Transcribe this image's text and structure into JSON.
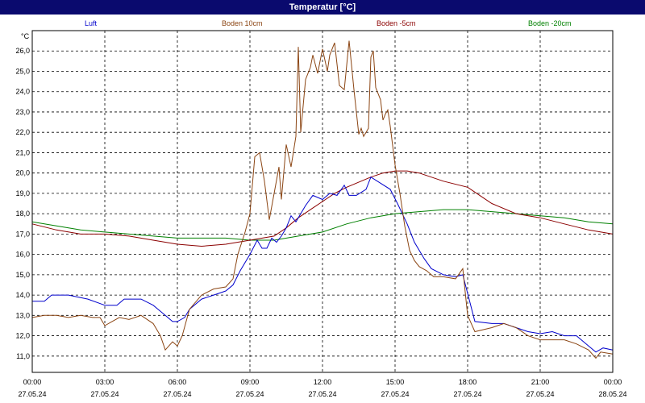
{
  "window": {
    "title": "Temperatur [°C]"
  },
  "chart_data": {
    "type": "line",
    "title": "Temperatur [°C]",
    "ylabel": "°C",
    "ylim": [
      10.2,
      27.0
    ],
    "xlim": [
      "27.05.24 00:00",
      "28.05.24 00:00"
    ],
    "grid": true,
    "legend_position": "top",
    "y_ticks": [
      "11,0",
      "12,0",
      "13,0",
      "14,0",
      "15,0",
      "16,0",
      "17,0",
      "18,0",
      "19,0",
      "20,0",
      "21,0",
      "22,0",
      "23,0",
      "24,0",
      "25,0",
      "26,0"
    ],
    "x_ticks": [
      {
        "time": "00:00",
        "date": "27.05.24"
      },
      {
        "time": "03:00",
        "date": "27.05.24"
      },
      {
        "time": "06:00",
        "date": "27.05.24"
      },
      {
        "time": "09:00",
        "date": "27.05.24"
      },
      {
        "time": "12:00",
        "date": "27.05.24"
      },
      {
        "time": "15:00",
        "date": "27.05.24"
      },
      {
        "time": "18:00",
        "date": "27.05.24"
      },
      {
        "time": "21:00",
        "date": "27.05.24"
      },
      {
        "time": "00:00",
        "date": "28.05.24"
      }
    ],
    "x_unit": "hours since 27.05.24 00:00",
    "series": [
      {
        "name": "Luft",
        "color": "#0000cc",
        "points": [
          [
            0,
            13.7
          ],
          [
            0.5,
            13.7
          ],
          [
            0.8,
            14.0
          ],
          [
            1.5,
            14.0
          ],
          [
            2.3,
            13.8
          ],
          [
            3,
            13.5
          ],
          [
            3.5,
            13.5
          ],
          [
            3.8,
            13.8
          ],
          [
            4.5,
            13.8
          ],
          [
            5,
            13.5
          ],
          [
            5.5,
            13.0
          ],
          [
            5.8,
            12.7
          ],
          [
            6.0,
            12.7
          ],
          [
            6.3,
            12.9
          ],
          [
            6.5,
            13.3
          ],
          [
            7,
            13.8
          ],
          [
            7.5,
            14.0
          ],
          [
            8,
            14.2
          ],
          [
            8.3,
            14.5
          ],
          [
            8.6,
            15.2
          ],
          [
            9,
            16.0
          ],
          [
            9.3,
            16.7
          ],
          [
            9.5,
            16.3
          ],
          [
            9.7,
            16.3
          ],
          [
            9.9,
            16.8
          ],
          [
            10.1,
            16.6
          ],
          [
            10.3,
            16.9
          ],
          [
            10.5,
            17.3
          ],
          [
            10.7,
            17.9
          ],
          [
            10.9,
            17.6
          ],
          [
            11.3,
            18.4
          ],
          [
            11.6,
            18.9
          ],
          [
            12,
            18.7
          ],
          [
            12.3,
            19.0
          ],
          [
            12.6,
            18.9
          ],
          [
            12.9,
            19.4
          ],
          [
            13.1,
            18.9
          ],
          [
            13.4,
            18.9
          ],
          [
            13.8,
            19.2
          ],
          [
            14.0,
            19.8
          ],
          [
            14.4,
            19.5
          ],
          [
            14.8,
            19.2
          ],
          [
            15.1,
            18.5
          ],
          [
            15.5,
            17.5
          ],
          [
            15.8,
            16.6
          ],
          [
            16.2,
            15.8
          ],
          [
            16.5,
            15.3
          ],
          [
            17,
            15.0
          ],
          [
            17.5,
            14.9
          ],
          [
            17.8,
            15.0
          ],
          [
            18.3,
            12.7
          ],
          [
            19,
            12.6
          ],
          [
            19.5,
            12.6
          ],
          [
            20,
            12.4
          ],
          [
            20.5,
            12.2
          ],
          [
            21,
            12.1
          ],
          [
            21.5,
            12.2
          ],
          [
            22,
            12.0
          ],
          [
            22.5,
            12.0
          ],
          [
            23,
            11.5
          ],
          [
            23.3,
            11.2
          ],
          [
            23.6,
            11.4
          ],
          [
            24,
            11.3
          ]
        ]
      },
      {
        "name": "Boden 10cm",
        "color": "#8b4513",
        "points": [
          [
            0,
            12.9
          ],
          [
            0.5,
            13.0
          ],
          [
            1,
            13.0
          ],
          [
            1.5,
            12.9
          ],
          [
            2,
            13.0
          ],
          [
            2.5,
            12.9
          ],
          [
            2.8,
            12.9
          ],
          [
            3,
            12.5
          ],
          [
            3.3,
            12.7
          ],
          [
            3.6,
            12.9
          ],
          [
            4,
            12.8
          ],
          [
            4.5,
            13.0
          ],
          [
            5,
            12.6
          ],
          [
            5.3,
            12.0
          ],
          [
            5.5,
            11.3
          ],
          [
            5.8,
            11.7
          ],
          [
            6.0,
            11.5
          ],
          [
            6.2,
            12.0
          ],
          [
            6.5,
            13.3
          ],
          [
            7,
            14.0
          ],
          [
            7.5,
            14.3
          ],
          [
            8,
            14.4
          ],
          [
            8.3,
            14.8
          ],
          [
            8.5,
            16.0
          ],
          [
            8.8,
            17.1
          ],
          [
            9,
            18.0
          ],
          [
            9.2,
            20.8
          ],
          [
            9.4,
            21.0
          ],
          [
            9.6,
            19.6
          ],
          [
            9.8,
            17.7
          ],
          [
            10.0,
            19.0
          ],
          [
            10.2,
            20.3
          ],
          [
            10.3,
            18.7
          ],
          [
            10.5,
            21.4
          ],
          [
            10.7,
            20.3
          ],
          [
            10.9,
            21.8
          ],
          [
            11.0,
            26.2
          ],
          [
            11.1,
            22.0
          ],
          [
            11.3,
            24.6
          ],
          [
            11.5,
            25.2
          ],
          [
            11.6,
            25.8
          ],
          [
            11.8,
            24.9
          ],
          [
            12.0,
            26.1
          ],
          [
            12.2,
            25.0
          ],
          [
            12.3,
            25.8
          ],
          [
            12.5,
            26.4
          ],
          [
            12.7,
            24.3
          ],
          [
            12.9,
            24.1
          ],
          [
            13.1,
            26.5
          ],
          [
            13.3,
            24.1
          ],
          [
            13.5,
            21.9
          ],
          [
            13.6,
            22.2
          ],
          [
            13.7,
            21.8
          ],
          [
            13.9,
            22.2
          ],
          [
            14.0,
            25.7
          ],
          [
            14.1,
            26.0
          ],
          [
            14.2,
            24.2
          ],
          [
            14.4,
            23.6
          ],
          [
            14.5,
            22.6
          ],
          [
            14.6,
            22.9
          ],
          [
            14.7,
            23.1
          ],
          [
            14.8,
            22.3
          ],
          [
            15.0,
            20.4
          ],
          [
            15.2,
            19.0
          ],
          [
            15.4,
            17.4
          ],
          [
            15.6,
            16.2
          ],
          [
            15.8,
            15.7
          ],
          [
            16,
            15.4
          ],
          [
            16.3,
            15.2
          ],
          [
            16.6,
            14.9
          ],
          [
            17,
            14.9
          ],
          [
            17.5,
            14.8
          ],
          [
            17.8,
            15.3
          ],
          [
            18,
            13.0
          ],
          [
            18.3,
            12.2
          ],
          [
            19,
            12.4
          ],
          [
            19.5,
            12.6
          ],
          [
            20,
            12.4
          ],
          [
            20.5,
            12.0
          ],
          [
            21,
            11.8
          ],
          [
            21.5,
            11.8
          ],
          [
            22,
            11.8
          ],
          [
            22.5,
            11.6
          ],
          [
            23,
            11.3
          ],
          [
            23.3,
            10.9
          ],
          [
            23.5,
            11.2
          ],
          [
            24,
            11.1
          ]
        ]
      },
      {
        "name": "Boden -5cm",
        "color": "#8b0000",
        "points": [
          [
            0,
            17.5
          ],
          [
            1,
            17.2
          ],
          [
            2,
            17.0
          ],
          [
            3,
            17.0
          ],
          [
            4,
            16.9
          ],
          [
            5,
            16.7
          ],
          [
            6,
            16.5
          ],
          [
            7,
            16.4
          ],
          [
            8,
            16.5
          ],
          [
            9,
            16.7
          ],
          [
            10,
            16.9
          ],
          [
            10.5,
            17.3
          ],
          [
            11,
            17.8
          ],
          [
            11.5,
            18.2
          ],
          [
            12,
            18.6
          ],
          [
            12.5,
            19.0
          ],
          [
            13,
            19.3
          ],
          [
            14,
            19.8
          ],
          [
            14.5,
            20.0
          ],
          [
            15,
            20.1
          ],
          [
            15.5,
            20.1
          ],
          [
            16,
            20.0
          ],
          [
            17,
            19.6
          ],
          [
            18,
            19.3
          ],
          [
            18.5,
            18.9
          ],
          [
            19,
            18.5
          ],
          [
            20,
            18.0
          ],
          [
            21,
            17.8
          ],
          [
            22,
            17.5
          ],
          [
            23,
            17.2
          ],
          [
            24,
            17.0
          ]
        ]
      },
      {
        "name": "Boden -20cm",
        "color": "#008000",
        "points": [
          [
            0,
            17.6
          ],
          [
            1,
            17.4
          ],
          [
            2,
            17.2
          ],
          [
            3,
            17.1
          ],
          [
            4,
            17.0
          ],
          [
            5,
            16.9
          ],
          [
            6,
            16.8
          ],
          [
            7,
            16.8
          ],
          [
            8,
            16.8
          ],
          [
            9,
            16.7
          ],
          [
            10,
            16.7
          ],
          [
            11,
            16.9
          ],
          [
            12,
            17.1
          ],
          [
            13,
            17.5
          ],
          [
            14,
            17.8
          ],
          [
            15,
            18.0
          ],
          [
            16,
            18.1
          ],
          [
            17,
            18.2
          ],
          [
            18,
            18.2
          ],
          [
            19,
            18.1
          ],
          [
            20,
            18.0
          ],
          [
            21,
            17.9
          ],
          [
            22,
            17.8
          ],
          [
            23,
            17.6
          ],
          [
            24,
            17.5
          ]
        ]
      }
    ]
  }
}
